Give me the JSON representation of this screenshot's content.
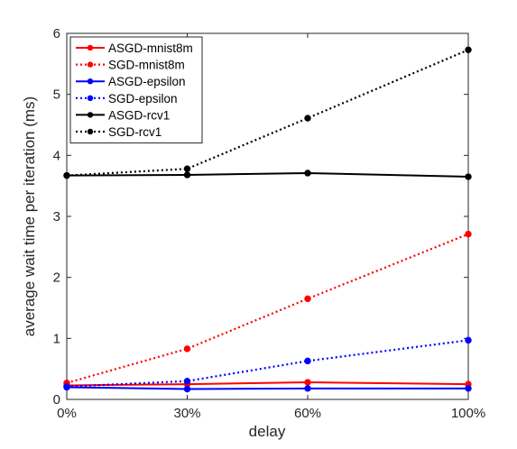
{
  "chart_data": {
    "type": "line",
    "title": "",
    "xlabel": "delay",
    "ylabel": "average wait time per iteration (ms)",
    "categories": [
      "0%",
      "30%",
      "60%",
      "100%"
    ],
    "x": [
      0,
      30,
      60,
      100
    ],
    "xlim": [
      0,
      100
    ],
    "ylim": [
      0,
      6
    ],
    "yticks": [
      "0",
      "1",
      "2",
      "3",
      "4",
      "5",
      "6"
    ],
    "grid": false,
    "legend_position": "top-left",
    "series": [
      {
        "name": "ASGD-mnist8m",
        "color": "#ff0000",
        "line_style": "solid",
        "marker": "dot",
        "values": [
          0.23,
          0.25,
          0.28,
          0.25
        ]
      },
      {
        "name": "SGD-mnist8m",
        "color": "#ff0000",
        "line_style": "dotted",
        "marker": "dot",
        "values": [
          0.27,
          0.83,
          1.65,
          2.71
        ]
      },
      {
        "name": "ASGD-epsilon",
        "color": "#0000ff",
        "line_style": "solid",
        "marker": "dot",
        "values": [
          0.2,
          0.17,
          0.18,
          0.18
        ]
      },
      {
        "name": "SGD-epsilon",
        "color": "#0000ff",
        "line_style": "dotted",
        "marker": "dot",
        "values": [
          0.21,
          0.3,
          0.63,
          0.97
        ]
      },
      {
        "name": "ASGD-rcv1",
        "color": "#000000",
        "line_style": "solid",
        "marker": "dot",
        "values": [
          3.67,
          3.68,
          3.71,
          3.65
        ]
      },
      {
        "name": "SGD-rcv1",
        "color": "#000000",
        "line_style": "dotted",
        "marker": "dot",
        "values": [
          3.67,
          3.78,
          4.61,
          5.73
        ]
      }
    ]
  }
}
